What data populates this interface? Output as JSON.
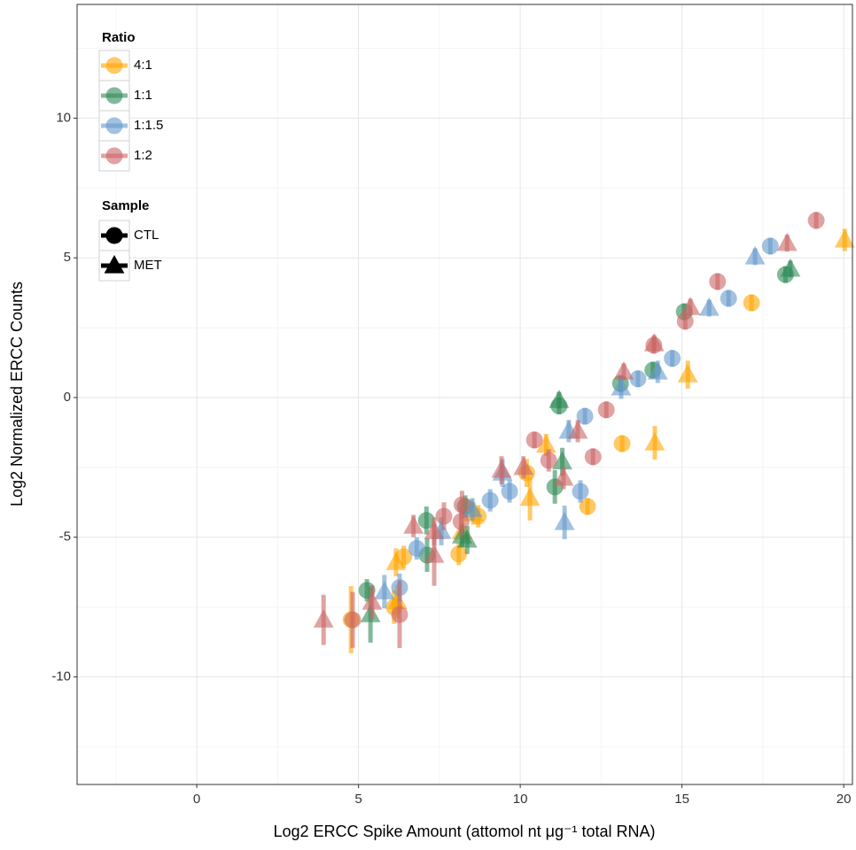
{
  "chart_data": {
    "type": "scatter",
    "x_label": "Log2 ERCC Spike Amount (attomol nt μg⁻¹ total RNA)",
    "y_label": "Log2 Normalized ERCC Counts",
    "xlim": [
      -3.7,
      20.27
    ],
    "ylim": [
      -13.85,
      14.07
    ],
    "xticks": [
      0,
      5,
      10,
      15,
      20
    ],
    "yticks": [
      -10,
      -5,
      0,
      5,
      10
    ],
    "xminorticks": [
      -2.5,
      2.5,
      7.5,
      12.5,
      17.5
    ],
    "yminorticks": [
      -12.5,
      -7.5,
      -2.5,
      2.5,
      7.5,
      12.5
    ],
    "grid": true,
    "legend_position": "top-left",
    "color_legend_title": "Ratio",
    "shape_legend_title": "Sample",
    "shapes": [
      {
        "name": "CTL",
        "shape": "circle"
      },
      {
        "name": "MET",
        "shape": "triangle"
      }
    ],
    "series": [
      {
        "name": "4:1",
        "color": "#ffa500",
        "samples": [
          {
            "x": [
              17.15,
              13.15,
              12.08,
              10.2,
              8.7,
              8.1,
              6.4,
              4.77,
              6.1
            ],
            "y": [
              3.39,
              -1.65,
              -3.9,
              -2.7,
              -4.25,
              -5.6,
              -5.7,
              -7.95,
              -7.5
            ],
            "err": [
              0.3,
              0.3,
              0.3,
              0.5,
              0.4,
              0.4,
              0.4,
              1.2,
              0.6
            ]
          },
          {
            "x": [
              20.03,
              15.18,
              14.16,
              10.3,
              10.8,
              8.55,
              8.2,
              6.16,
              6.2
            ],
            "y": [
              5.64,
              0.82,
              -1.62,
              -3.6,
              -1.7,
              -4.15,
              -4.8,
              -5.9,
              -7.3
            ],
            "err": [
              0.4,
              0.5,
              0.6,
              0.8,
              0.4,
              0.4,
              0.5,
              0.5,
              0.6
            ]
          }
        ]
      },
      {
        "name": "1:1",
        "color": "#2e8b57",
        "samples": [
          {
            "x": [
              18.2,
              15.07,
              14.1,
              13.1,
              11.2,
              11.07,
              8.3,
              7.12,
              7.1,
              5.26
            ],
            "y": [
              4.4,
              3.07,
              0.98,
              0.5,
              -0.3,
              -3.2,
              -3.9,
              -5.64,
              -4.4,
              -6.9
            ],
            "err": [
              0.3,
              0.3,
              0.3,
              0.3,
              0.3,
              0.6,
              0.4,
              0.6,
              0.5,
              0.4
            ]
          },
          {
            "x": [
              18.35,
              11.2,
              11.3,
              8.36,
              5.37,
              8.2
            ],
            "y": [
              4.6,
              -0.1,
              -2.3,
              -5.1,
              -7.77,
              -4.95
            ],
            "err": [
              0.3,
              0.3,
              0.5,
              0.5,
              1.0,
              0.4
            ]
          }
        ]
      },
      {
        "name": "1:1.5",
        "color": "#6699cc",
        "samples": [
          {
            "x": [
              17.73,
              16.44,
              14.7,
              13.64,
              12.0,
              11.86,
              9.67,
              9.07,
              6.8,
              6.27
            ],
            "y": [
              5.42,
              3.55,
              1.4,
              0.67,
              -0.67,
              -3.36,
              -3.36,
              -3.68,
              -5.4,
              -6.8
            ],
            "err": [
              0.3,
              0.3,
              0.3,
              0.3,
              0.3,
              0.4,
              0.4,
              0.4,
              0.4,
              0.5
            ]
          },
          {
            "x": [
              17.26,
              15.84,
              14.25,
              13.12,
              11.5,
              11.37,
              9.45,
              8.52,
              7.56,
              5.8
            ],
            "y": [
              5.04,
              3.2,
              0.92,
              0.35,
              -1.2,
              -4.47,
              -2.7,
              -4.0,
              -4.79,
              -6.95
            ],
            "err": [
              0.3,
              0.3,
              0.4,
              0.4,
              0.4,
              0.6,
              0.5,
              0.4,
              0.5,
              0.6
            ]
          }
        ]
      },
      {
        "name": "1:2",
        "color": "#cc6666",
        "samples": [
          {
            "x": [
              19.15,
              16.1,
              15.1,
              14.13,
              12.66,
              12.25,
              10.44,
              10.88,
              7.64,
              8.2,
              8.17,
              6.27,
              4.82
            ],
            "y": [
              6.34,
              4.15,
              2.73,
              1.87,
              -0.44,
              -2.12,
              -1.52,
              -2.25,
              -4.25,
              -3.84,
              -4.44,
              -7.77,
              -7.96
            ],
            "err": [
              0.3,
              0.3,
              0.3,
              0.3,
              0.3,
              0.3,
              0.3,
              0.4,
              0.5,
              0.5,
              0.5,
              1.2,
              1.0
            ]
          },
          {
            "x": [
              18.25,
              15.26,
              14.14,
              13.2,
              11.78,
              11.34,
              10.1,
              9.42,
              7.34,
              6.7,
              3.92,
              5.42,
              7.34
            ],
            "y": [
              5.52,
              3.23,
              1.93,
              0.92,
              -1.2,
              -2.88,
              -2.5,
              -2.6,
              -4.79,
              -4.6,
              -7.96,
              -7.32,
              -5.64
            ],
            "err": [
              0.3,
              0.3,
              0.3,
              0.3,
              0.4,
              0.4,
              0.4,
              0.5,
              0.5,
              0.4,
              0.9,
              0.6,
              1.1
            ]
          }
        ]
      }
    ]
  }
}
